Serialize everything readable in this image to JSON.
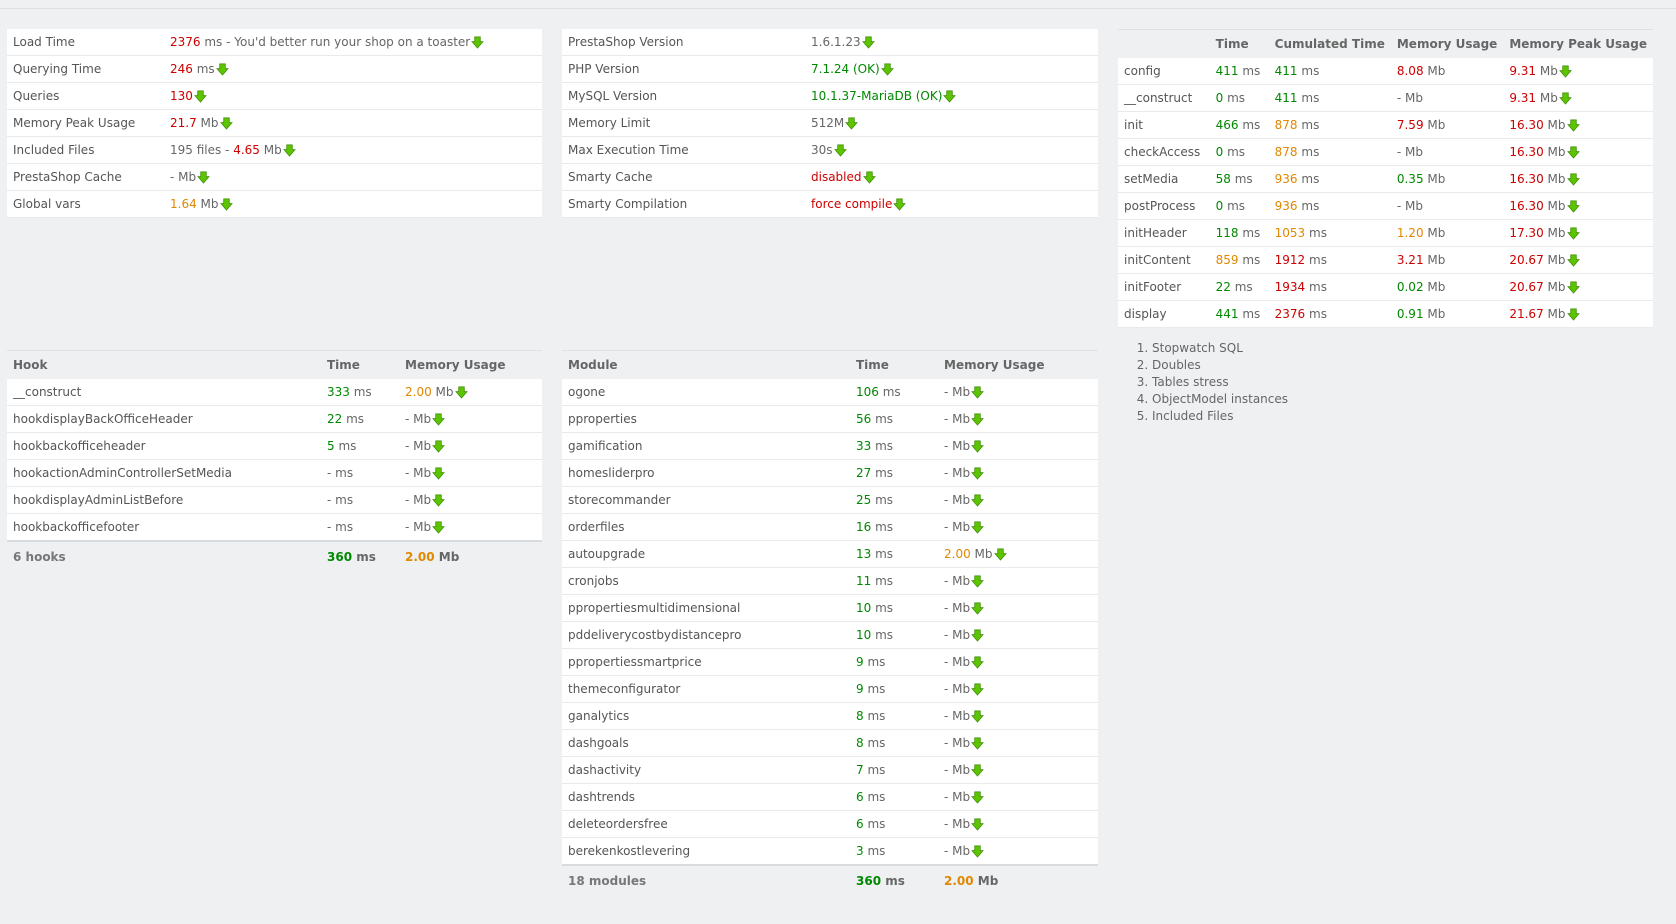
{
  "summary": [
    {
      "label": "Load Time",
      "value": "2376",
      "unit": " ms",
      "note": " - You'd better run your shop on a toaster",
      "color": "red"
    },
    {
      "label": "Querying Time",
      "value": "246",
      "unit": " ms",
      "color": "red"
    },
    {
      "label": "Queries",
      "value": "130",
      "unit": "",
      "color": "red"
    },
    {
      "label": "Memory Peak Usage",
      "value": "21.7",
      "unit": " Mb",
      "color": "red"
    },
    {
      "label": "Included Files",
      "value": "195 files - ",
      "value2": "4.65",
      "unit": " Mb",
      "color": "grey",
      "color2": "red"
    },
    {
      "label": "PrestaShop Cache",
      "value": "-",
      "unit": " Mb",
      "color": "grey"
    },
    {
      "label": "Global vars",
      "value": "1.64",
      "unit": " Mb",
      "color": "orange"
    }
  ],
  "config": [
    {
      "label": "PrestaShop Version",
      "value": "1.6.1.23",
      "color": "grey"
    },
    {
      "label": "PHP Version",
      "value": "7.1.24 (OK)",
      "color": "green"
    },
    {
      "label": "MySQL Version",
      "value": "10.1.37-MariaDB (OK)",
      "color": "green"
    },
    {
      "label": "Memory Limit",
      "value": "512M",
      "color": "grey"
    },
    {
      "label": "Max Execution Time",
      "value": "30s",
      "color": "grey"
    },
    {
      "label": "Smarty Cache",
      "value": "disabled",
      "color": "red"
    },
    {
      "label": "Smarty Compilation",
      "value": "force compile",
      "color": "red"
    }
  ],
  "steps": {
    "headers": [
      "",
      "Time",
      "Cumulated Time",
      "Memory Usage",
      "Memory Peak Usage"
    ],
    "rows": [
      {
        "name": "config",
        "time": "411",
        "time_c": "green",
        "cum": "411",
        "cum_c": "green",
        "mem": "8.08",
        "mem_c": "red",
        "peak": "9.31",
        "peak_c": "red"
      },
      {
        "name": "__construct",
        "time": "0",
        "time_c": "green",
        "cum": "411",
        "cum_c": "green",
        "mem": "-",
        "mem_c": "grey",
        "peak": "9.31",
        "peak_c": "red"
      },
      {
        "name": "init",
        "time": "466",
        "time_c": "green",
        "cum": "878",
        "cum_c": "orange",
        "mem": "7.59",
        "mem_c": "red",
        "peak": "16.30",
        "peak_c": "red"
      },
      {
        "name": "checkAccess",
        "time": "0",
        "time_c": "green",
        "cum": "878",
        "cum_c": "orange",
        "mem": "-",
        "mem_c": "grey",
        "peak": "16.30",
        "peak_c": "red"
      },
      {
        "name": "setMedia",
        "time": "58",
        "time_c": "green",
        "cum": "936",
        "cum_c": "orange",
        "mem": "0.35",
        "mem_c": "green",
        "peak": "16.30",
        "peak_c": "red"
      },
      {
        "name": "postProcess",
        "time": "0",
        "time_c": "green",
        "cum": "936",
        "cum_c": "orange",
        "mem": "-",
        "mem_c": "grey",
        "peak": "16.30",
        "peak_c": "red"
      },
      {
        "name": "initHeader",
        "time": "118",
        "time_c": "green",
        "cum": "1053",
        "cum_c": "orange",
        "mem": "1.20",
        "mem_c": "orange",
        "peak": "17.30",
        "peak_c": "red"
      },
      {
        "name": "initContent",
        "time": "859",
        "time_c": "orange",
        "cum": "1912",
        "cum_c": "red",
        "mem": "3.21",
        "mem_c": "red",
        "peak": "20.67",
        "peak_c": "red"
      },
      {
        "name": "initFooter",
        "time": "22",
        "time_c": "green",
        "cum": "1934",
        "cum_c": "red",
        "mem": "0.02",
        "mem_c": "green",
        "peak": "20.67",
        "peak_c": "red"
      },
      {
        "name": "display",
        "time": "441",
        "time_c": "green",
        "cum": "2376",
        "cum_c": "red",
        "mem": "0.91",
        "mem_c": "green",
        "peak": "21.67",
        "peak_c": "red"
      }
    ]
  },
  "hooks": {
    "headers": [
      "Hook",
      "Time",
      "Memory Usage"
    ],
    "rows": [
      {
        "name": "__construct",
        "time": "333",
        "mem": "2.00",
        "mem_c": "orange"
      },
      {
        "name": "hookdisplayBackOfficeHeader",
        "time": "22",
        "mem": "-",
        "mem_c": "grey"
      },
      {
        "name": "hookbackofficeheader",
        "time": "5",
        "mem": "-",
        "mem_c": "grey"
      },
      {
        "name": "hookactionAdminControllerSetMedia",
        "time": "-",
        "mem": "-",
        "mem_c": "grey"
      },
      {
        "name": "hookdisplayAdminListBefore",
        "time": "-",
        "mem": "-",
        "mem_c": "grey"
      },
      {
        "name": "hookbackofficefooter",
        "time": "-",
        "mem": "-",
        "mem_c": "grey"
      }
    ],
    "footer": {
      "label": "6 hooks",
      "time": "360",
      "mem": "2.00"
    }
  },
  "modules": {
    "headers": [
      "Module",
      "Time",
      "Memory Usage"
    ],
    "rows": [
      {
        "name": "ogone",
        "time": "106",
        "mem": "-",
        "mem_c": "grey"
      },
      {
        "name": "pproperties",
        "time": "56",
        "mem": "-",
        "mem_c": "grey"
      },
      {
        "name": "gamification",
        "time": "33",
        "mem": "-",
        "mem_c": "grey"
      },
      {
        "name": "homesliderpro",
        "time": "27",
        "mem": "-",
        "mem_c": "grey"
      },
      {
        "name": "storecommander",
        "time": "25",
        "mem": "-",
        "mem_c": "grey"
      },
      {
        "name": "orderfiles",
        "time": "16",
        "mem": "-",
        "mem_c": "grey"
      },
      {
        "name": "autoupgrade",
        "time": "13",
        "mem": "2.00",
        "mem_c": "orange"
      },
      {
        "name": "cronjobs",
        "time": "11",
        "mem": "-",
        "mem_c": "grey"
      },
      {
        "name": "ppropertiesmultidimensional",
        "time": "10",
        "mem": "-",
        "mem_c": "grey"
      },
      {
        "name": "pddeliverycostbydistancepro",
        "time": "10",
        "mem": "-",
        "mem_c": "grey"
      },
      {
        "name": "ppropertiessmartprice",
        "time": "9",
        "mem": "-",
        "mem_c": "grey"
      },
      {
        "name": "themeconfigurator",
        "time": "9",
        "mem": "-",
        "mem_c": "grey"
      },
      {
        "name": "ganalytics",
        "time": "8",
        "mem": "-",
        "mem_c": "grey"
      },
      {
        "name": "dashgoals",
        "time": "8",
        "mem": "-",
        "mem_c": "grey"
      },
      {
        "name": "dashactivity",
        "time": "7",
        "mem": "-",
        "mem_c": "grey"
      },
      {
        "name": "dashtrends",
        "time": "6",
        "mem": "-",
        "mem_c": "grey"
      },
      {
        "name": "deleteordersfree",
        "time": "6",
        "mem": "-",
        "mem_c": "grey"
      },
      {
        "name": "berekenkostlevering",
        "time": "3",
        "mem": "-",
        "mem_c": "grey"
      }
    ],
    "footer": {
      "label": "18 modules",
      "time": "360",
      "mem": "2.00"
    }
  },
  "links": [
    "Stopwatch SQL",
    "Doubles",
    "Tables stress",
    "ObjectModel instances",
    "Included Files"
  ],
  "units": {
    "ms": " ms",
    "mb": " Mb"
  },
  "colors": {
    "red": "#cc0000",
    "green": "#008800",
    "orange": "#e08800",
    "grey": "#666666",
    "icon": "#5cc400"
  }
}
